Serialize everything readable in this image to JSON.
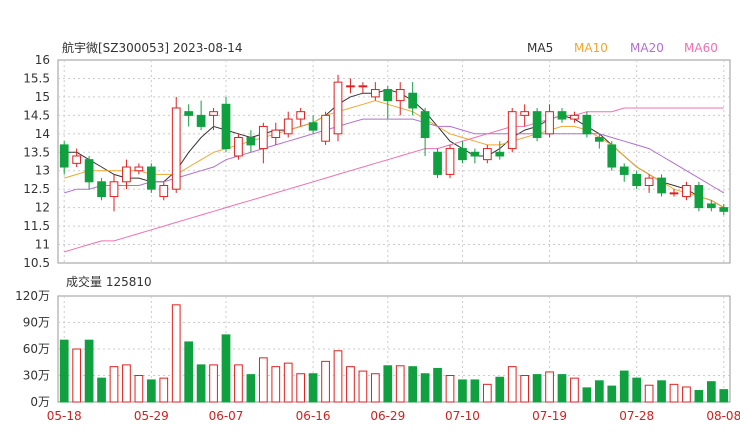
{
  "chart_data": [
    {
      "type": "candlestick",
      "title": "航宇微[SZ300053] 2023-08-14",
      "ylim": [
        10.5,
        16
      ],
      "yticks": [
        "16",
        "15.5",
        "15",
        "14.5",
        "14",
        "13.5",
        "13",
        "12.5",
        "12",
        "11.5",
        "11",
        "10.5"
      ],
      "xticks": [
        {
          "label": "05-18",
          "index": 0
        },
        {
          "label": "05-29",
          "index": 7
        },
        {
          "label": "06-07",
          "index": 13
        },
        {
          "label": "06-16",
          "index": 20
        },
        {
          "label": "06-29",
          "index": 26
        },
        {
          "label": "07-10",
          "index": 32
        },
        {
          "label": "07-19",
          "index": 39
        },
        {
          "label": "07-28",
          "index": 46
        },
        {
          "label": "08-08",
          "index": 53
        }
      ],
      "legend": [
        {
          "name": "MA5",
          "color": "#333333"
        },
        {
          "name": "MA10",
          "color": "#f0a830"
        },
        {
          "name": "MA20",
          "color": "#b070d0"
        },
        {
          "name": "MA60",
          "color": "#f070b0"
        }
      ],
      "colors": {
        "up": "#e02020",
        "down": "#10a040"
      },
      "candles": [
        [
          13.7,
          13.1,
          13.8,
          12.9
        ],
        [
          13.2,
          13.4,
          13.6,
          13.1
        ],
        [
          13.3,
          12.7,
          13.4,
          12.5
        ],
        [
          12.7,
          12.3,
          12.8,
          12.2
        ],
        [
          12.3,
          12.7,
          12.9,
          11.9
        ],
        [
          12.7,
          13.1,
          13.3,
          12.5
        ],
        [
          13.0,
          13.1,
          13.2,
          12.9
        ],
        [
          13.1,
          12.5,
          13.2,
          12.4
        ],
        [
          12.3,
          12.6,
          12.7,
          12.2
        ],
        [
          12.5,
          14.7,
          15.0,
          12.4
        ],
        [
          14.6,
          14.5,
          14.8,
          14.2
        ],
        [
          14.5,
          14.2,
          14.9,
          14.1
        ],
        [
          14.5,
          14.6,
          14.7,
          14.1
        ],
        [
          14.8,
          13.6,
          15.0,
          13.5
        ],
        [
          13.4,
          13.9,
          14.0,
          13.3
        ],
        [
          13.9,
          13.7,
          14.1,
          13.5
        ],
        [
          13.6,
          14.2,
          14.3,
          13.2
        ],
        [
          13.9,
          14.1,
          14.3,
          13.7
        ],
        [
          14.0,
          14.4,
          14.6,
          13.9
        ],
        [
          14.4,
          14.6,
          14.7,
          14.2
        ],
        [
          14.3,
          14.1,
          14.5,
          14.0
        ],
        [
          13.8,
          14.5,
          14.6,
          13.7
        ],
        [
          14.0,
          15.4,
          15.6,
          13.8
        ],
        [
          15.3,
          15.3,
          15.5,
          15.1
        ],
        [
          15.3,
          15.3,
          15.4,
          15.1
        ],
        [
          15.0,
          15.2,
          15.4,
          14.9
        ],
        [
          15.2,
          14.9,
          15.3,
          14.4
        ],
        [
          14.9,
          15.2,
          15.4,
          14.5
        ],
        [
          15.1,
          14.7,
          15.4,
          14.5
        ],
        [
          14.6,
          13.9,
          14.7,
          13.4
        ],
        [
          13.5,
          12.9,
          13.6,
          12.8
        ],
        [
          12.9,
          13.6,
          13.7,
          12.8
        ],
        [
          13.6,
          13.3,
          13.8,
          13.2
        ],
        [
          13.5,
          13.4,
          13.6,
          13.2
        ],
        [
          13.3,
          13.6,
          13.7,
          13.2
        ],
        [
          13.5,
          13.4,
          13.8,
          13.3
        ],
        [
          13.6,
          14.6,
          14.7,
          13.5
        ],
        [
          14.5,
          14.6,
          14.8,
          14.2
        ],
        [
          14.6,
          13.9,
          14.7,
          13.8
        ],
        [
          14.0,
          14.6,
          14.8,
          13.9
        ],
        [
          14.6,
          14.4,
          14.7,
          14.3
        ],
        [
          14.4,
          14.5,
          14.6,
          14.3
        ],
        [
          14.5,
          14.0,
          14.6,
          13.9
        ],
        [
          13.9,
          13.8,
          14.0,
          13.6
        ],
        [
          13.7,
          13.1,
          13.8,
          13.0
        ],
        [
          13.1,
          12.9,
          13.2,
          12.7
        ],
        [
          12.9,
          12.6,
          13.0,
          12.5
        ],
        [
          12.6,
          12.8,
          12.9,
          12.4
        ],
        [
          12.8,
          12.4,
          12.9,
          12.3
        ],
        [
          12.4,
          12.4,
          12.5,
          12.3
        ],
        [
          12.3,
          12.6,
          12.7,
          12.2
        ],
        [
          12.6,
          12.0,
          12.7,
          11.9
        ],
        [
          12.1,
          12.0,
          12.2,
          11.9
        ],
        [
          12.0,
          11.9,
          12.1,
          11.8
        ]
      ],
      "ma": {
        "MA5": [
          13.5,
          13.5,
          13.3,
          13.1,
          12.9,
          12.8,
          12.8,
          12.7,
          12.7,
          13.0,
          13.5,
          13.9,
          14.2,
          14.1,
          14.0,
          13.9,
          14.0,
          14.1,
          14.1,
          14.2,
          14.3,
          14.5,
          14.8,
          15.0,
          15.1,
          15.1,
          15.2,
          15.1,
          14.9,
          14.6,
          14.2,
          13.8,
          13.6,
          13.4,
          13.4,
          13.6,
          13.9,
          14.1,
          14.2,
          14.4,
          14.5,
          14.4,
          14.2,
          14.0,
          13.7,
          13.4,
          13.1,
          12.9,
          12.7,
          12.6,
          12.5,
          12.3,
          12.2,
          12.0
        ],
        "MA10": [
          12.8,
          12.9,
          13.0,
          13.0,
          13.0,
          13.0,
          13.0,
          12.9,
          12.9,
          12.9,
          13.1,
          13.3,
          13.5,
          13.6,
          13.7,
          13.8,
          13.9,
          14.0,
          14.1,
          14.2,
          14.3,
          14.5,
          14.6,
          14.7,
          14.8,
          14.9,
          14.8,
          14.7,
          14.6,
          14.4,
          14.2,
          14.0,
          13.9,
          13.8,
          13.7,
          13.7,
          13.8,
          13.9,
          14.0,
          14.1,
          14.2,
          14.2,
          14.1,
          13.9,
          13.7,
          13.4,
          13.1,
          12.9,
          12.7,
          12.5,
          12.4,
          12.3,
          12.2,
          12.0
        ],
        "MA20": [
          12.4,
          12.5,
          12.5,
          12.6,
          12.6,
          12.6,
          12.6,
          12.7,
          12.7,
          12.8,
          12.9,
          13.0,
          13.1,
          13.3,
          13.4,
          13.5,
          13.6,
          13.7,
          13.8,
          13.9,
          14.0,
          14.1,
          14.2,
          14.3,
          14.4,
          14.4,
          14.4,
          14.4,
          14.4,
          14.3,
          14.2,
          14.2,
          14.1,
          14.0,
          14.0,
          14.0,
          14.0,
          14.0,
          14.0,
          14.0,
          14.0,
          14.0,
          14.0,
          14.0,
          13.9,
          13.8,
          13.7,
          13.6,
          13.4,
          13.2,
          13.0,
          12.8,
          12.6,
          12.4
        ],
        "MA60": [
          10.8,
          10.9,
          11.0,
          11.1,
          11.1,
          11.2,
          11.3,
          11.4,
          11.5,
          11.6,
          11.7,
          11.8,
          11.9,
          12.0,
          12.1,
          12.2,
          12.3,
          12.4,
          12.5,
          12.6,
          12.7,
          12.8,
          12.9,
          13.0,
          13.1,
          13.2,
          13.3,
          13.4,
          13.5,
          13.6,
          13.6,
          13.7,
          13.8,
          13.9,
          14.0,
          14.1,
          14.2,
          14.2,
          14.3,
          14.4,
          14.5,
          14.5,
          14.6,
          14.6,
          14.6,
          14.7,
          14.7,
          14.7,
          14.7,
          14.7,
          14.7,
          14.7,
          14.7,
          14.7
        ]
      }
    },
    {
      "type": "bar",
      "title": "成交量 125810",
      "ylim": [
        0,
        120
      ],
      "yticks": [
        "120万",
        "90万",
        "60万",
        "30万",
        "0万"
      ],
      "values": [
        70,
        60,
        70,
        27,
        40,
        42,
        30,
        25,
        27,
        110,
        68,
        42,
        42,
        76,
        42,
        31,
        50,
        40,
        44,
        32,
        32,
        46,
        58,
        40,
        35,
        32,
        41,
        41,
        40,
        32,
        38,
        30,
        25,
        25,
        20,
        28,
        40,
        30,
        31,
        34,
        31,
        27,
        16,
        24,
        18,
        35,
        27,
        19,
        24,
        20,
        17,
        13,
        23,
        14
      ]
    }
  ]
}
